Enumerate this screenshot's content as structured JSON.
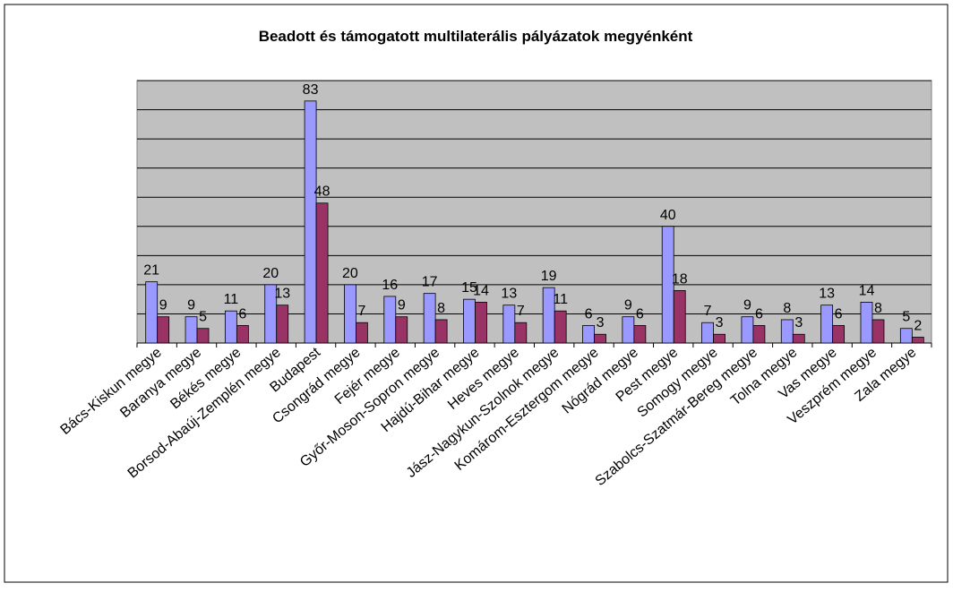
{
  "chart_data": {
    "type": "bar",
    "title": "Beadott és támogatott multilaterális pályázatok megyénként",
    "categories": [
      "Bács-Kiskun megye",
      "Baranya megye",
      "Békés megye",
      "Borsod-Abaúj-Zemplén megye",
      "Budapest",
      "Csongrád megye",
      "Fejér megye",
      "Győr-Moson-Sopron megye",
      "Hajdú-Bihar megye",
      "Heves megye",
      "Jász-Nagykun-Szolnok megye",
      "Komárom-Esztergom megye",
      "Nógrád megye",
      "Pest megye",
      "Somogy megye",
      "Szabolcs-Szatmár-Bereg megye",
      "Tolna megye",
      "Vas megye",
      "Veszprém megye",
      "Zala megye"
    ],
    "series": [
      {
        "color": "#9999ff",
        "values": [
          21,
          9,
          11,
          20,
          83,
          20,
          16,
          17,
          15,
          13,
          19,
          6,
          9,
          40,
          7,
          9,
          8,
          13,
          14,
          5
        ]
      },
      {
        "color": "#993366",
        "values": [
          9,
          5,
          6,
          13,
          48,
          7,
          9,
          8,
          14,
          7,
          11,
          3,
          6,
          18,
          3,
          6,
          3,
          6,
          8,
          2
        ]
      }
    ],
    "ylim": [
      0,
      90
    ],
    "yticks": [
      0,
      10,
      20,
      30,
      40,
      50,
      60,
      70,
      80,
      90
    ],
    "grid": true
  }
}
